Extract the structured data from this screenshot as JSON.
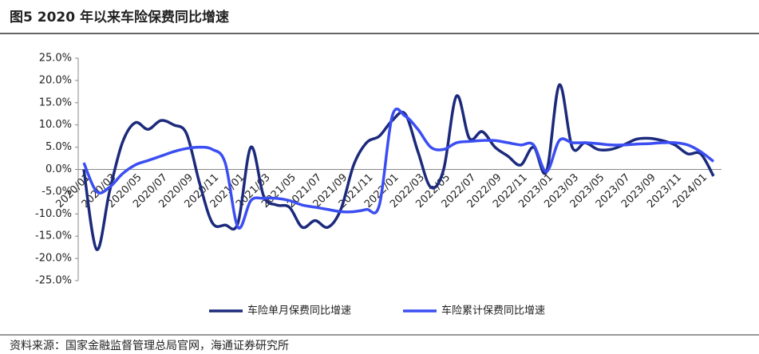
{
  "chart_data": {
    "type": "line",
    "title": "图5  2020 年以来车险保费同比增速",
    "source": "资料来源：国家金融监督管理总局官网，海通证券研究所",
    "categories": [
      "2020/01",
      null,
      "2020/03",
      null,
      "2020/05",
      null,
      "2020/07",
      null,
      "2020/09",
      null,
      "2020/11",
      null,
      "2021/01",
      null,
      "2021/03",
      null,
      "2021/05",
      null,
      "2021/07",
      null,
      "2021/09",
      null,
      "2021/11",
      null,
      "2022/01",
      null,
      "2022/03",
      null,
      "2022/05",
      null,
      "2022/07",
      null,
      "2022/09",
      null,
      "2022/11",
      null,
      "2023/01",
      null,
      "2023/03",
      null,
      "2023/05",
      null,
      "2023/07",
      null,
      "2023/09",
      null,
      "2023/11",
      null,
      "2024/01",
      null
    ],
    "series": [
      {
        "name": "车险单月保费同比增速",
        "color": "#1c2a7c",
        "values": [
          0,
          -18,
          -5,
          6,
          10.5,
          9,
          11,
          10,
          8,
          -3,
          -12,
          -12.5,
          -12,
          5,
          -6,
          -8,
          -8.5,
          -13,
          -11.5,
          -13,
          -9,
          1,
          6,
          7.5,
          11,
          12.5,
          4,
          -4,
          0,
          16.5,
          7,
          8.5,
          5,
          3,
          1,
          5,
          -0.5,
          19,
          5,
          6,
          4.5,
          4.5,
          5.5,
          6.8,
          7,
          6.5,
          5.5,
          3.5,
          3.5,
          -1.5
        ]
      },
      {
        "name": "车险累计保费同比增速",
        "color": "#3b4ef2",
        "values": [
          1.5,
          -5,
          -4,
          -1,
          1,
          2,
          3,
          4,
          4.7,
          5,
          4.5,
          1.5,
          -13,
          -7,
          -6.5,
          -6.5,
          -7,
          -8,
          -8.5,
          -9,
          -9.5,
          -9.5,
          -9,
          -8,
          12,
          12,
          9,
          5,
          4.5,
          6,
          6.3,
          6.5,
          6.5,
          6,
          5.5,
          5.5,
          -0.5,
          6.5,
          6,
          6,
          5.8,
          5.5,
          5.5,
          5.7,
          5.8,
          6,
          6,
          5.5,
          4,
          1.8
        ]
      }
    ],
    "ylim": [
      -25,
      25
    ],
    "yticks": [
      {
        "value": -25,
        "label": "-25.0%"
      },
      {
        "value": -20,
        "label": "-20.0%"
      },
      {
        "value": -15,
        "label": "-15.0%"
      },
      {
        "value": -10,
        "label": "-10.0%"
      },
      {
        "value": -5,
        "label": "-5.0%"
      },
      {
        "value": 0,
        "label": "0.0%"
      },
      {
        "value": 5,
        "label": "5.0%"
      },
      {
        "value": 10,
        "label": "10.0%"
      },
      {
        "value": 15,
        "label": "15.0%"
      },
      {
        "value": 20,
        "label": "20.0%"
      },
      {
        "value": 25,
        "label": "25.0%"
      }
    ],
    "grid": false,
    "legend": "bottom"
  }
}
